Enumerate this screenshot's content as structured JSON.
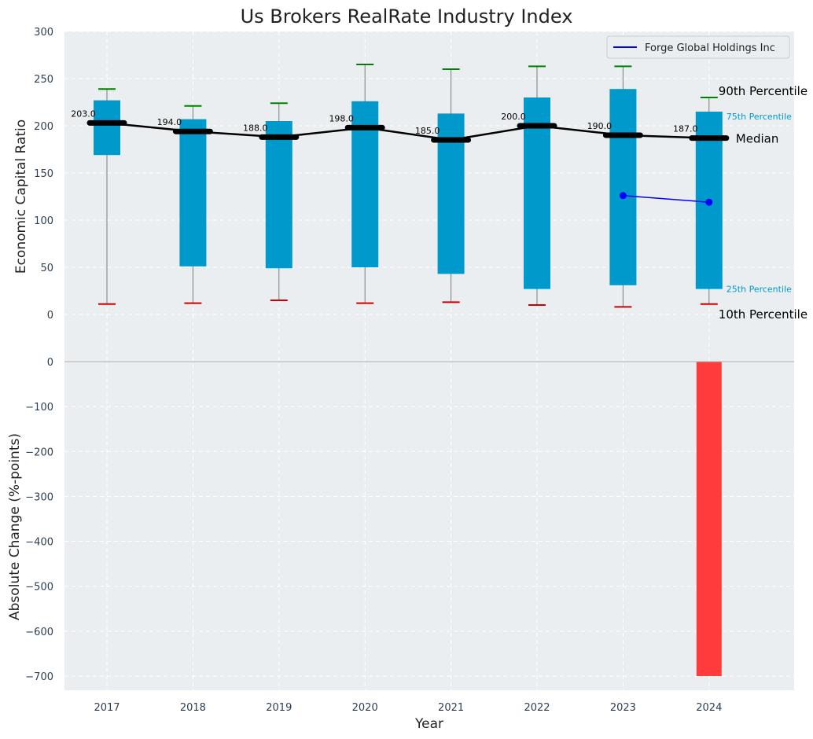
{
  "chart_data": {
    "type": "box",
    "title": "Us Brokers RealRate Industry Index",
    "xlabel": "Year",
    "years": [
      "2017",
      "2018",
      "2019",
      "2020",
      "2021",
      "2022",
      "2023",
      "2024"
    ],
    "top_panel": {
      "ylabel": "Economic Capital Ratio",
      "ylim": [
        0,
        300
      ],
      "yticks": [
        "300",
        "250",
        "200",
        "150",
        "100",
        "50",
        "0"
      ],
      "p10": [
        11,
        12,
        15,
        12,
        13,
        10,
        8,
        11
      ],
      "p25": [
        169,
        51,
        49,
        50,
        43,
        27,
        31,
        27
      ],
      "median": [
        203,
        194,
        188,
        198,
        185,
        200,
        190,
        187
      ],
      "median_labels": [
        "203.0",
        "194.0",
        "188.0",
        "198.0",
        "185.0",
        "200.0",
        "190.0",
        "187.0"
      ],
      "p75": [
        227,
        207,
        205,
        226,
        213,
        230,
        239,
        215
      ],
      "p90": [
        239,
        221,
        224,
        265,
        260,
        263,
        263,
        230
      ],
      "company": {
        "name": "Forge Global Holdings Inc",
        "years": [
          "2023",
          "2024"
        ],
        "values": [
          126,
          119
        ]
      },
      "annotations": {
        "p90": "90th Percentile",
        "p75": "75th Percentile",
        "median": "Median",
        "p25": "25th Percentile",
        "p10": "10th Percentile"
      },
      "legend_position": "top-right"
    },
    "bottom_panel": {
      "ylabel": "Absolute Change (%-points)",
      "ylim": [
        -730,
        0
      ],
      "yticks": [
        "0",
        "−100",
        "−200",
        "−300",
        "−400",
        "−500",
        "−600",
        "−700"
      ],
      "values": [
        null,
        null,
        null,
        null,
        null,
        null,
        null,
        -700
      ]
    },
    "colors": {
      "box": "#0099cc",
      "median": "#000000",
      "p90_cap": "#008000",
      "p10_cap": "#cc0000",
      "company": "#0000ff",
      "change_bar": "#ff3b3b",
      "plot_bg": "#eaeef0"
    },
    "grid": true
  }
}
